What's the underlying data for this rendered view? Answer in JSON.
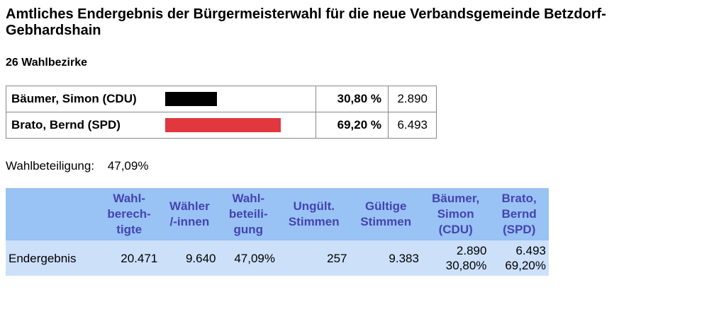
{
  "title": "Amtliches Endergebnis der Bürgermeisterwahl für die neue Verbandsgemeinde Betzdorf-Gebhardshain",
  "subtitle": "26 Wahlbezirke",
  "candidates": [
    {
      "name": "Bäumer, Simon (CDU)",
      "percent": "30,80 %",
      "votes": "2.890",
      "share": 0.308,
      "color": "#000000"
    },
    {
      "name": "Brato, Bernd (SPD)",
      "percent": "69,20 %",
      "votes": "6.493",
      "share": 0.692,
      "color": "#e0383e"
    }
  ],
  "turnout": {
    "label": "Wahlbeteiligung:",
    "value": "47,09%"
  },
  "details": {
    "headers": [
      {
        "lines": [
          "Wahl-",
          "berech-",
          "tigte"
        ]
      },
      {
        "lines": [
          "Wähler",
          "/-innen"
        ]
      },
      {
        "lines": [
          "Wahl-",
          "beteili-",
          "gung"
        ]
      },
      {
        "lines": [
          "Ungült.",
          "Stimmen"
        ]
      },
      {
        "lines": [
          "Gültige",
          "Stimmen"
        ]
      },
      {
        "lines": [
          "Bäumer,",
          "Simon",
          "(CDU)"
        ]
      },
      {
        "lines": [
          "Brato,",
          "Bernd",
          "(SPD)"
        ]
      }
    ],
    "row": {
      "label": "Endergebnis",
      "wahlberechtigte": "20.471",
      "waehler": "9.640",
      "wahlbeteiligung": "47,09%",
      "ungueltige": "257",
      "gueltige": "9.383",
      "baeumer_votes": "2.890",
      "baeumer_pct": "30,80%",
      "brato_votes": "6.493",
      "brato_pct": "69,20%"
    }
  },
  "colors": {
    "header_bg": "#99c2f5",
    "header_text": "#4444b0",
    "row_bg": "#cce0fa"
  }
}
